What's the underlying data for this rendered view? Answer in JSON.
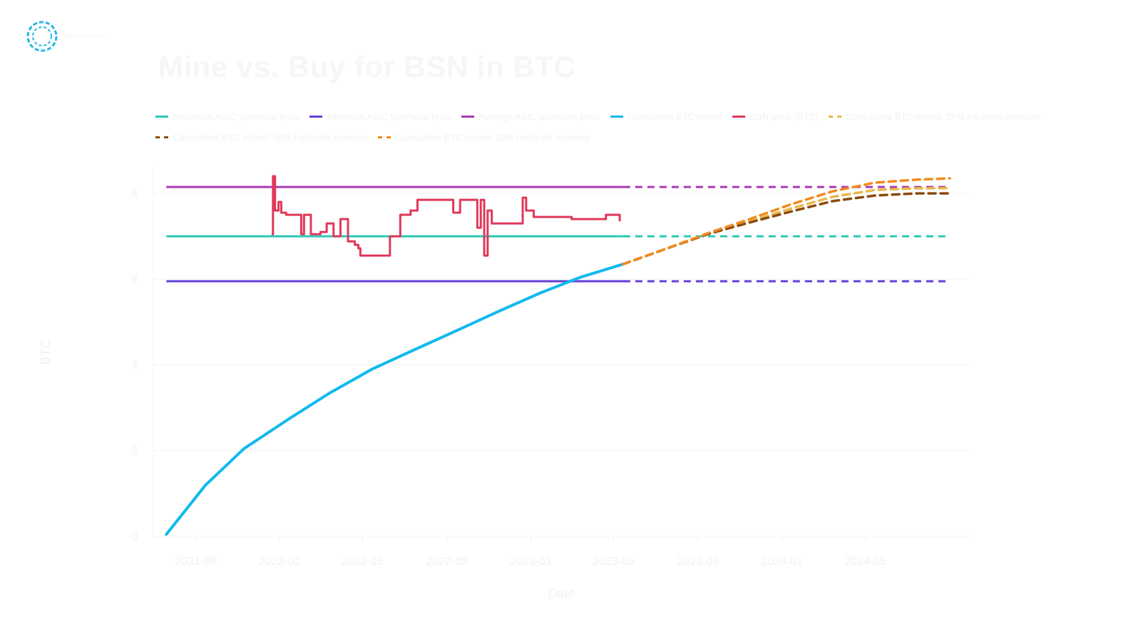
{
  "brand": {
    "name": "Blockstream",
    "logo_icon": "circular-dashed-logo-icon",
    "logo_color": "#25b6e7"
  },
  "chart_data": {
    "type": "line",
    "title": "Mine vs. Buy for BSN in BTC",
    "xlabel": "Date",
    "ylabel": "BTC",
    "x_tick_labels": [
      "2021-09",
      "2022-01",
      "2022-05",
      "2022-09",
      "2023-01",
      "2023-05",
      "2023-09",
      "2024-01",
      "2024-05"
    ],
    "y_tick_labels": [
      "0",
      "2",
      "4",
      "6",
      "8"
    ],
    "ylim": [
      0,
      8.6
    ],
    "xlim": [
      "2021-07-01",
      "2024-09-30"
    ],
    "projection_start": "2023-05-15",
    "grid": "horizontal",
    "legend_position": "top",
    "series": [
      {
        "name": "Maximum ASIC purchase price",
        "color": "#2dc9b4",
        "style": "solid-then-dashed",
        "points": [
          [
            "2021-07-20",
            7.0
          ],
          [
            "2023-05-15",
            7.0
          ],
          [
            "2024-09-01",
            7.0
          ]
        ]
      },
      {
        "name": "Minimum ASIC purchase price",
        "color": "#6440d6",
        "style": "solid-then-dashed",
        "points": [
          [
            "2021-07-20",
            5.95
          ],
          [
            "2023-05-15",
            5.95
          ],
          [
            "2024-09-01",
            5.95
          ]
        ]
      },
      {
        "name": "Average ASIC purchase price",
        "color": "#a83ab2",
        "style": "solid-then-dashed",
        "points": [
          [
            "2021-07-20",
            8.15
          ],
          [
            "2023-05-15",
            8.15
          ],
          [
            "2024-09-01",
            8.15
          ]
        ]
      },
      {
        "name": "Cumulative BTC mined",
        "color": "#12b9ef",
        "style": "solid",
        "points": [
          [
            "2021-07-20",
            0.05
          ],
          [
            "2021-09-15",
            1.2
          ],
          [
            "2021-11-10",
            2.05
          ],
          [
            "2022-01-15",
            2.75
          ],
          [
            "2022-03-15",
            3.35
          ],
          [
            "2022-05-15",
            3.9
          ],
          [
            "2022-07-15",
            4.35
          ],
          [
            "2022-09-15",
            4.8
          ],
          [
            "2022-11-15",
            5.25
          ],
          [
            "2023-01-15",
            5.68
          ],
          [
            "2023-03-15",
            6.05
          ],
          [
            "2023-05-15",
            6.35
          ]
        ]
      },
      {
        "name": "BSN price (BTC)",
        "color": "#e0385a",
        "style": "step",
        "points": [
          [
            "2021-12-20",
            7.05
          ],
          [
            "2021-12-22",
            8.4
          ],
          [
            "2021-12-25",
            7.6
          ],
          [
            "2021-12-30",
            7.8
          ],
          [
            "2022-01-03",
            7.55
          ],
          [
            "2022-01-08",
            7.55
          ],
          [
            "2022-01-10",
            7.5
          ],
          [
            "2022-01-20",
            7.5
          ],
          [
            "2022-02-01",
            7.05
          ],
          [
            "2022-02-05",
            7.5
          ],
          [
            "2022-02-15",
            7.05
          ],
          [
            "2022-03-01",
            7.1
          ],
          [
            "2022-03-10",
            7.3
          ],
          [
            "2022-03-20",
            7.0
          ],
          [
            "2022-03-25",
            7.0
          ],
          [
            "2022-03-30",
            7.4
          ],
          [
            "2022-04-10",
            6.88
          ],
          [
            "2022-04-20",
            6.8
          ],
          [
            "2022-04-25",
            6.72
          ],
          [
            "2022-04-28",
            6.55
          ],
          [
            "2022-06-05",
            6.55
          ],
          [
            "2022-06-10",
            7.0
          ],
          [
            "2022-06-25",
            7.5
          ],
          [
            "2022-07-10",
            7.6
          ],
          [
            "2022-07-20",
            7.85
          ],
          [
            "2022-09-10",
            7.55
          ],
          [
            "2022-09-20",
            7.85
          ],
          [
            "2022-10-05",
            7.85
          ],
          [
            "2022-10-15",
            7.2
          ],
          [
            "2022-10-20",
            7.85
          ],
          [
            "2022-10-25",
            6.55
          ],
          [
            "2022-10-30",
            7.6
          ],
          [
            "2022-11-05",
            7.3
          ],
          [
            "2022-12-20",
            7.9
          ],
          [
            "2022-12-25",
            7.6
          ],
          [
            "2023-01-05",
            7.45
          ],
          [
            "2023-03-01",
            7.4
          ],
          [
            "2023-04-20",
            7.5
          ],
          [
            "2023-05-10",
            7.35
          ]
        ]
      },
      {
        "name": "Cumulative BTC mined: 25% hashrate increase",
        "color": "#e8b84a",
        "style": "dashed",
        "points": [
          [
            "2023-05-15",
            6.35
          ],
          [
            "2023-07-15",
            6.7
          ],
          [
            "2023-09-15",
            7.05
          ],
          [
            "2023-11-15",
            7.35
          ],
          [
            "2024-01-15",
            7.65
          ],
          [
            "2024-03-15",
            7.92
          ],
          [
            "2024-05-15",
            8.08
          ],
          [
            "2024-07-15",
            8.12
          ],
          [
            "2024-09-01",
            8.12
          ]
        ]
      },
      {
        "name": "Cumulative BTC mined: 50% hashrate increase",
        "color": "#8a4a0e",
        "style": "dashed",
        "points": [
          [
            "2023-05-15",
            6.35
          ],
          [
            "2023-07-15",
            6.7
          ],
          [
            "2023-09-15",
            7.05
          ],
          [
            "2023-11-15",
            7.32
          ],
          [
            "2024-01-15",
            7.58
          ],
          [
            "2024-03-15",
            7.82
          ],
          [
            "2024-05-15",
            7.95
          ],
          [
            "2024-07-15",
            8.0
          ],
          [
            "2024-09-01",
            8.0
          ]
        ]
      },
      {
        "name": "Cumulative BTC mined: 10% hashrate increase",
        "color": "#f28a1e",
        "style": "dashed",
        "points": [
          [
            "2023-05-15",
            6.35
          ],
          [
            "2023-07-15",
            6.7
          ],
          [
            "2023-09-15",
            7.07
          ],
          [
            "2023-11-15",
            7.4
          ],
          [
            "2024-01-15",
            7.75
          ],
          [
            "2024-03-15",
            8.05
          ],
          [
            "2024-05-15",
            8.25
          ],
          [
            "2024-07-15",
            8.32
          ],
          [
            "2024-09-01",
            8.35
          ]
        ]
      }
    ]
  }
}
